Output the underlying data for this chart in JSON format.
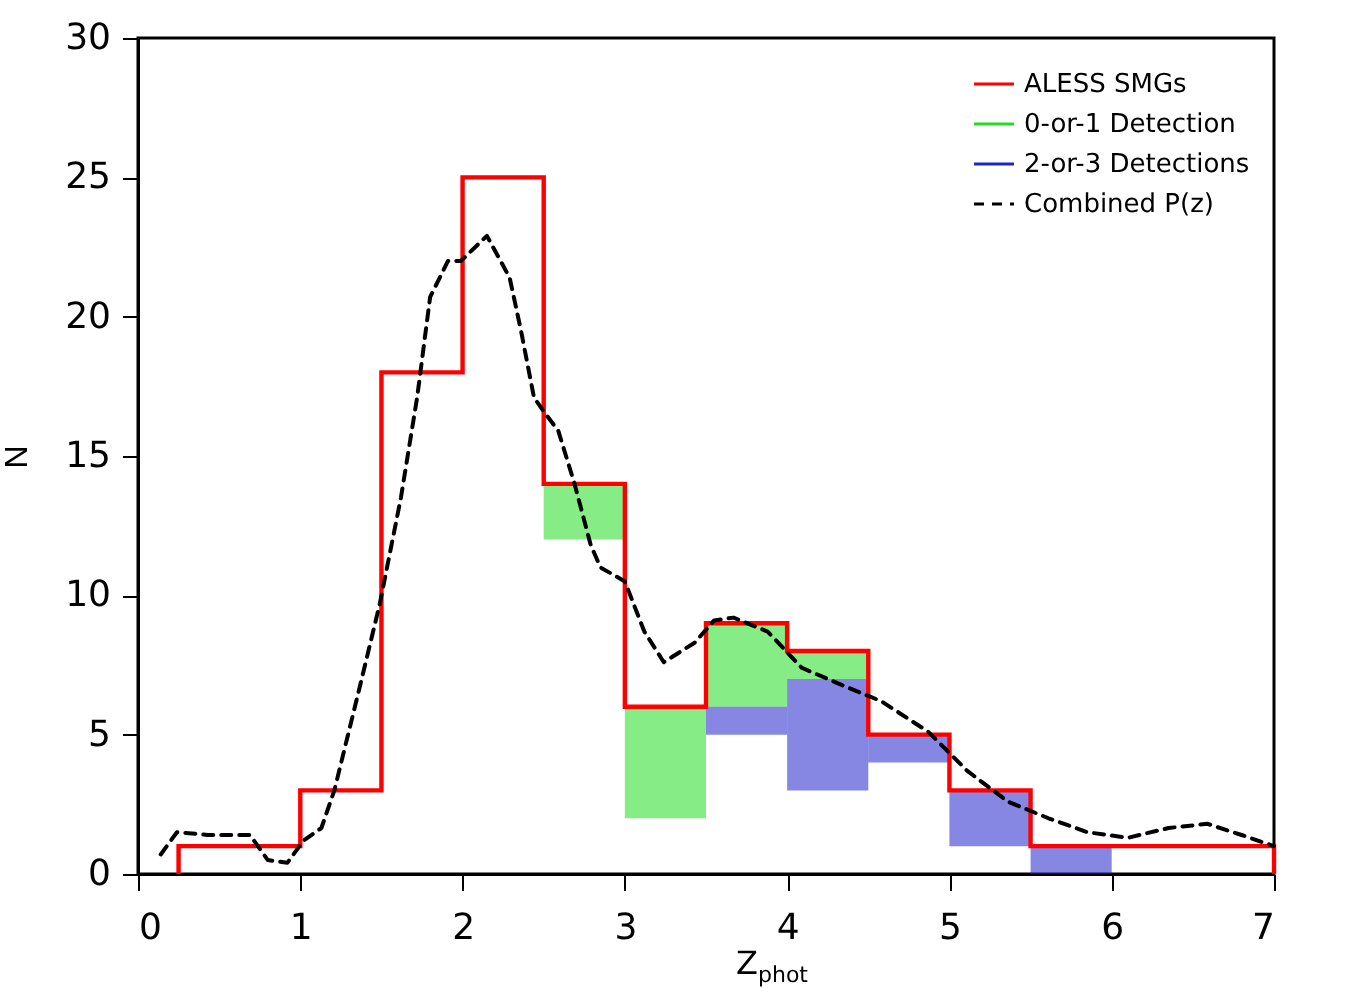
{
  "chart_data": {
    "type": "histogram",
    "xlabel": "Z$_{phot}$",
    "ylabel": "N",
    "xlim": [
      0,
      7
    ],
    "xticks": [
      0,
      1,
      2,
      3,
      4,
      5,
      6,
      7
    ],
    "ylim": [
      0,
      30
    ],
    "yticks": [
      0,
      5,
      10,
      15,
      20,
      25,
      30
    ],
    "grid": false,
    "legend": "top right",
    "series": [
      {
        "name": "ALESS SMGs",
        "color": "#ff0000",
        "bins": [
          0.25,
          1,
          1.5,
          2,
          2.5,
          3,
          3.5,
          4,
          4.5,
          5,
          5.5,
          7
        ],
        "values": [
          1,
          3,
          18,
          25,
          14,
          6,
          9,
          8,
          5,
          3,
          1
        ]
      },
      {
        "name": "0-or-1 Detection",
        "type": "histogram",
        "color": "#22dd22",
        "bins": [
          2.5,
          3,
          3.5,
          4,
          4.5
        ],
        "base": [
          12,
          2,
          6,
          7
        ],
        "values": [
          2,
          4,
          3,
          1
        ]
      },
      {
        "name": "2-or-3 Detections",
        "type": "histogram",
        "color": "#2222cc",
        "bins": [
          3.5,
          4,
          4.5,
          5,
          5.5,
          6
        ],
        "base": [
          5,
          3,
          4,
          1,
          0
        ],
        "values": [
          1,
          4,
          1,
          2,
          1
        ]
      },
      {
        "name": "Combined P(z)",
        "type": "line",
        "color": "#000000",
        "line_style": "dashed",
        "x": [
          0.14,
          0.24,
          0.43,
          0.69,
          0.8,
          0.92,
          1.02,
          1.13,
          1.21,
          1.37,
          1.49,
          1.62,
          1.72,
          1.8,
          1.91,
          1.99,
          2.15,
          2.29,
          2.36,
          2.44,
          2.5,
          2.59,
          2.69,
          2.79,
          2.85,
          3.0,
          3.12,
          3.24,
          3.43,
          3.55,
          3.67,
          3.88,
          4.09,
          4.37,
          4.58,
          4.87,
          5.11,
          5.36,
          5.61,
          5.85,
          6.1,
          6.35,
          6.59,
          6.8,
          7.0
        ],
        "values": [
          0.7,
          1.5,
          1.4,
          1.4,
          0.5,
          0.4,
          1.2,
          1.65,
          3.0,
          6.8,
          9.7,
          13.5,
          17.1,
          20.7,
          22.0,
          22.0,
          22.9,
          21.4,
          19.5,
          17.1,
          16.6,
          15.9,
          14.0,
          11.8,
          11.0,
          10.5,
          8.7,
          7.6,
          8.3,
          9.1,
          9.2,
          8.7,
          7.4,
          6.7,
          6.2,
          5.1,
          3.7,
          2.6,
          2.0,
          1.5,
          1.3,
          1.65,
          1.8,
          1.4,
          1.0
        ]
      }
    ]
  }
}
